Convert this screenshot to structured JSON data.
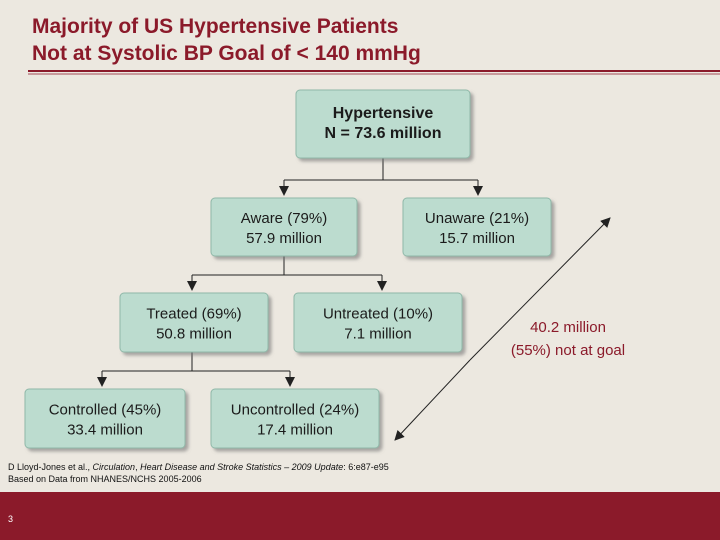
{
  "header": {
    "title": [
      "Majority of US Hypertensive Patients",
      "Not at Systolic BP Goal of < 140 mmHg"
    ]
  },
  "nodes": [
    {
      "lines": [
        "Hypertensive",
        "N = 73.6 million"
      ]
    },
    {
      "lines": [
        "Aware (79%)",
        "57.9 million"
      ]
    },
    {
      "lines": [
        "Unaware (21%)",
        "15.7 million"
      ]
    },
    {
      "lines": [
        "Treated (69%)",
        "50.8 million"
      ]
    },
    {
      "lines": [
        "Untreated (10%)",
        "7.1 million"
      ]
    },
    {
      "lines": [
        "Controlled (45%)",
        "33.4 million"
      ]
    },
    {
      "lines": [
        "Uncontrolled (24%)",
        "17.4 million"
      ]
    }
  ],
  "annotation": [
    "40.2 million",
    "(55%) not at goal"
  ],
  "citation": {
    "line1": [
      "D Lloyd-Jones et al., ",
      "Circulation",
      ", ",
      "Heart Disease and Stroke Statistics – 2009 Update",
      ": 6:e87-e95"
    ],
    "line2": "Based on Data from NHANES/NCHS 2005-2006"
  },
  "footer": {
    "page": "3"
  }
}
